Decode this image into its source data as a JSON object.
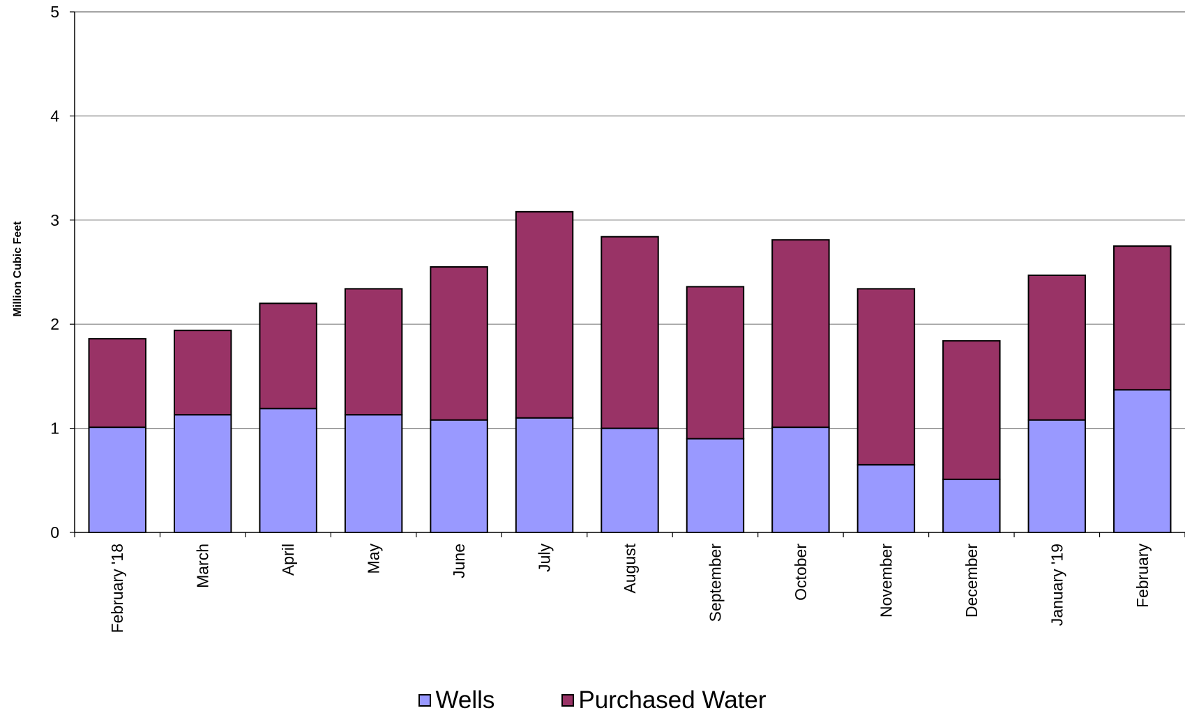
{
  "chart_data": {
    "type": "bar",
    "stacked": true,
    "ylabel": "Million Cubic Feet",
    "xlabel": "",
    "ylim": [
      0,
      5
    ],
    "yticks": [
      "0",
      "1",
      "2",
      "3",
      "4",
      "5"
    ],
    "grid": true,
    "legend_position": "bottom",
    "categories": [
      "February '18",
      "March",
      "April",
      "May",
      "June",
      "July",
      "August",
      "September",
      "October",
      "November",
      "December",
      "January '19",
      "February"
    ],
    "series": [
      {
        "name": "Wells",
        "color": "#9999ff",
        "values": [
          1.01,
          1.13,
          1.19,
          1.13,
          1.08,
          1.1,
          1.0,
          0.9,
          1.01,
          0.65,
          0.51,
          1.08,
          1.37
        ]
      },
      {
        "name": "Purchased Water",
        "color": "#993366",
        "values": [
          0.85,
          0.81,
          1.01,
          1.21,
          1.47,
          1.98,
          1.84,
          1.46,
          1.8,
          1.69,
          1.33,
          1.39,
          1.38
        ]
      }
    ]
  }
}
